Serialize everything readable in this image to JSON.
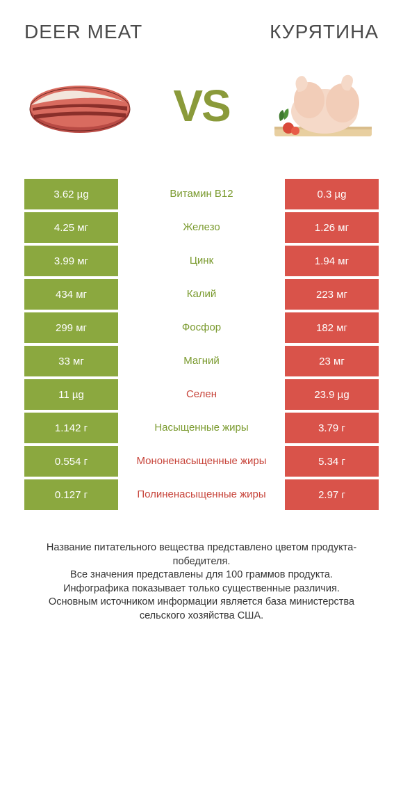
{
  "colors": {
    "left": "#8ba83f",
    "right": "#d9534a",
    "left_text": "#7a9a2e",
    "right_text": "#c7443a",
    "vs": "#8a9a3a",
    "heading": "#4a4a4a"
  },
  "header": {
    "left": "DEER MEAT",
    "right": "КУРЯТИНА",
    "vs": "VS"
  },
  "rows": [
    {
      "left": "3.62 µg",
      "mid": "Витамин B12",
      "right": "0.3 µg",
      "winner": "left"
    },
    {
      "left": "4.25 мг",
      "mid": "Железо",
      "right": "1.26 мг",
      "winner": "left"
    },
    {
      "left": "3.99 мг",
      "mid": "Цинк",
      "right": "1.94 мг",
      "winner": "left"
    },
    {
      "left": "434 мг",
      "mid": "Калий",
      "right": "223 мг",
      "winner": "left"
    },
    {
      "left": "299 мг",
      "mid": "Фосфор",
      "right": "182 мг",
      "winner": "left"
    },
    {
      "left": "33 мг",
      "mid": "Магний",
      "right": "23 мг",
      "winner": "left"
    },
    {
      "left": "11 µg",
      "mid": "Селен",
      "right": "23.9 µg",
      "winner": "right"
    },
    {
      "left": "1.142 г",
      "mid": "Насыщенные жиры",
      "right": "3.79 г",
      "winner": "left"
    },
    {
      "left": "0.554 г",
      "mid": "Мононенасыщенные жиры",
      "right": "5.34 г",
      "winner": "right"
    },
    {
      "left": "0.127 г",
      "mid": "Полиненасыщенные жиры",
      "right": "2.97 г",
      "winner": "right"
    }
  ],
  "footer": {
    "l1": "Название питательного вещества представлено цветом продукта-победителя.",
    "l2": "Все значения представлены для 100 граммов продукта.",
    "l3": "Инфографика показывает только существенные различия.",
    "l4": "Основным источником информации является база министерства сельского хозяйства США."
  }
}
